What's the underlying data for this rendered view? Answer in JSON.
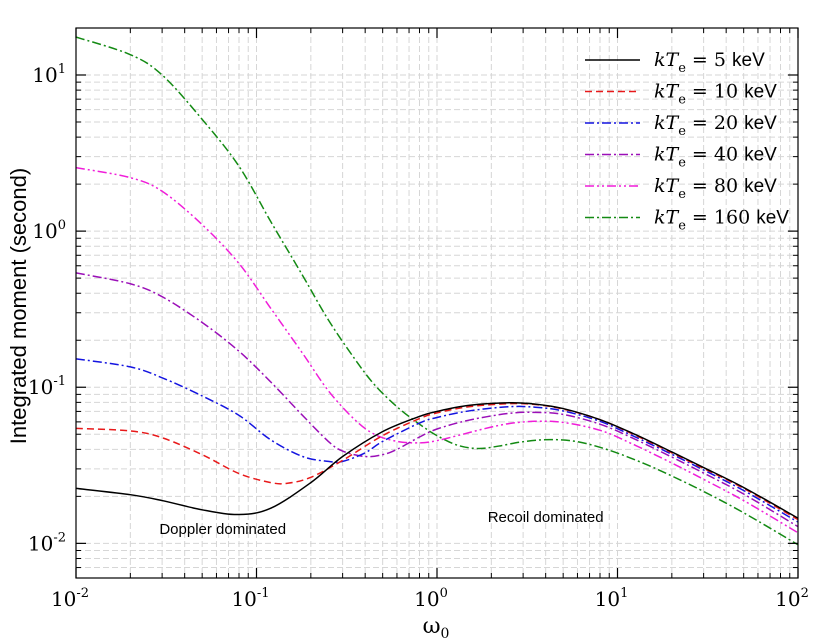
{
  "chart_data": {
    "type": "line",
    "title": "",
    "xlabel": "ω",
    "xlabel_sub": "0",
    "ylabel": "Integrated moment (second)",
    "xscale": "log",
    "yscale": "log",
    "xlim": [
      0.01,
      100
    ],
    "ylim": [
      0.006,
      20
    ],
    "grid": true,
    "legend_position": "top-right",
    "x_ticks": [
      {
        "value": 0.01,
        "base": "10",
        "exp": "-2"
      },
      {
        "value": 0.1,
        "base": "10",
        "exp": "-1"
      },
      {
        "value": 1,
        "base": "10",
        "exp": "0"
      },
      {
        "value": 10,
        "base": "10",
        "exp": "1"
      },
      {
        "value": 100,
        "base": "10",
        "exp": "2"
      }
    ],
    "y_ticks": [
      {
        "value": 0.01,
        "base": "10",
        "exp": "-2"
      },
      {
        "value": 0.1,
        "base": "10",
        "exp": "-1"
      },
      {
        "value": 1,
        "base": "10",
        "exp": "0"
      },
      {
        "value": 10,
        "base": "10",
        "exp": "1"
      }
    ],
    "annotations": [
      {
        "text": "Doppler dominated",
        "x": 0.065,
        "y": 0.0115
      },
      {
        "text": "Recoil dominated",
        "x": 4.0,
        "y": 0.0137
      }
    ],
    "series": [
      {
        "name_prefix": "kT",
        "name_sub": "e",
        "name_value": "= 5",
        "name_unit": "keV",
        "color": "#000000",
        "dash": "solid",
        "x": [
          0.01,
          0.02,
          0.03,
          0.05,
          0.08,
          0.12,
          0.2,
          0.3,
          0.5,
          0.8,
          1.0,
          1.5,
          2.5,
          3.5,
          5,
          8,
          12,
          20,
          30,
          50,
          100
        ],
        "y": [
          0.0225,
          0.0205,
          0.0188,
          0.0164,
          0.0153,
          0.0168,
          0.0245,
          0.036,
          0.052,
          0.065,
          0.07,
          0.0765,
          0.0795,
          0.078,
          0.073,
          0.062,
          0.051,
          0.0385,
          0.0306,
          0.0228,
          0.0145
        ]
      },
      {
        "name_prefix": "kT",
        "name_sub": "e",
        "name_value": "= 10",
        "name_unit": "keV",
        "color": "#e8191a",
        "dash": "dashed",
        "x": [
          0.01,
          0.02,
          0.03,
          0.05,
          0.08,
          0.12,
          0.15,
          0.2,
          0.3,
          0.5,
          0.8,
          1.0,
          1.5,
          2.5,
          3.5,
          5,
          8,
          12,
          20,
          30,
          50,
          100
        ],
        "y": [
          0.0545,
          0.0525,
          0.0475,
          0.037,
          0.028,
          0.0245,
          0.0243,
          0.0265,
          0.034,
          0.049,
          0.063,
          0.0685,
          0.075,
          0.0785,
          0.0775,
          0.0725,
          0.062,
          0.0505,
          0.038,
          0.0302,
          0.0225,
          0.0142
        ]
      },
      {
        "name_prefix": "kT",
        "name_sub": "e",
        "name_value": "= 20",
        "name_unit": "keV",
        "color": "#1414e0",
        "dash": "dashdot",
        "x": [
          0.01,
          0.02,
          0.03,
          0.05,
          0.08,
          0.12,
          0.18,
          0.25,
          0.3,
          0.4,
          0.5,
          0.8,
          1.0,
          1.5,
          2.5,
          3.5,
          5,
          8,
          12,
          20,
          30,
          50,
          100
        ],
        "y": [
          0.152,
          0.135,
          0.115,
          0.088,
          0.066,
          0.046,
          0.036,
          0.0335,
          0.0335,
          0.038,
          0.045,
          0.059,
          0.064,
          0.0705,
          0.075,
          0.0745,
          0.0705,
          0.0605,
          0.0492,
          0.0372,
          0.0295,
          0.0218,
          0.0137
        ]
      },
      {
        "name_prefix": "kT",
        "name_sub": "e",
        "name_value": "= 40",
        "name_unit": "keV",
        "color": "#9b0fb8",
        "dash": "dashdot",
        "x": [
          0.01,
          0.02,
          0.03,
          0.05,
          0.08,
          0.12,
          0.18,
          0.25,
          0.3,
          0.4,
          0.5,
          0.6,
          0.8,
          1.0,
          1.5,
          2.5,
          3.5,
          5,
          8,
          12,
          20,
          30,
          50,
          100
        ],
        "y": [
          0.54,
          0.46,
          0.38,
          0.26,
          0.17,
          0.108,
          0.066,
          0.045,
          0.039,
          0.036,
          0.037,
          0.04,
          0.048,
          0.054,
          0.0615,
          0.068,
          0.069,
          0.067,
          0.058,
          0.0475,
          0.0357,
          0.0282,
          0.0207,
          0.0128
        ]
      },
      {
        "name_prefix": "kT",
        "name_sub": "e",
        "name_value": "= 80",
        "name_unit": "keV",
        "color": "#f01ed9",
        "dash": "dashdotdot",
        "x": [
          0.01,
          0.02,
          0.03,
          0.05,
          0.08,
          0.12,
          0.18,
          0.25,
          0.35,
          0.45,
          0.6,
          0.8,
          1.0,
          1.3,
          1.8,
          2.5,
          3.5,
          5,
          8,
          12,
          20,
          30,
          50,
          100
        ],
        "y": [
          2.55,
          2.2,
          1.8,
          1.1,
          0.62,
          0.32,
          0.165,
          0.095,
          0.062,
          0.05,
          0.045,
          0.044,
          0.0455,
          0.049,
          0.054,
          0.0585,
          0.0605,
          0.0595,
          0.053,
          0.0435,
          0.0327,
          0.0257,
          0.0188,
          0.0117
        ]
      },
      {
        "name_prefix": "kT",
        "name_sub": "e",
        "name_value": "= 160",
        "name_unit": "keV",
        "color": "#138a13",
        "dash": "dashdot",
        "x": [
          0.01,
          0.02,
          0.03,
          0.05,
          0.08,
          0.12,
          0.18,
          0.25,
          0.35,
          0.45,
          0.6,
          0.8,
          1.0,
          1.3,
          1.7,
          2.2,
          3.0,
          4.2,
          6,
          9,
          14,
          20,
          30,
          50,
          100
        ],
        "y": [
          17.5,
          13.5,
          10,
          5.2,
          2.6,
          1.15,
          0.52,
          0.27,
          0.152,
          0.104,
          0.075,
          0.058,
          0.049,
          0.0425,
          0.0405,
          0.042,
          0.0448,
          0.0462,
          0.0448,
          0.0395,
          0.0325,
          0.027,
          0.0215,
          0.0157,
          0.0098
        ]
      }
    ]
  }
}
